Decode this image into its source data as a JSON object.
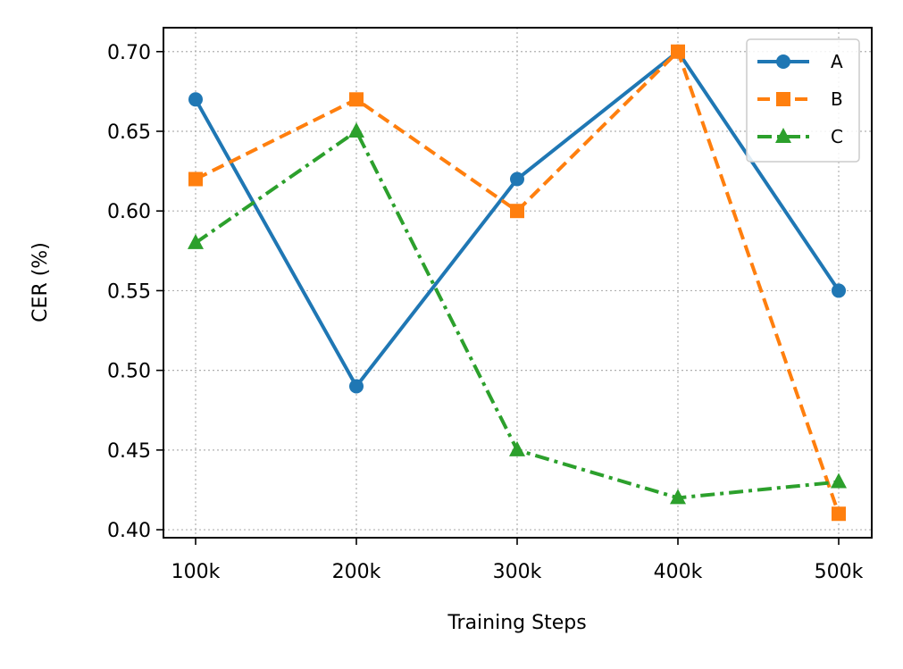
{
  "chart_data": {
    "type": "line",
    "title": "",
    "xlabel": "Training Steps",
    "ylabel": "CER (%)",
    "categories": [
      "100k",
      "200k",
      "300k",
      "400k",
      "500k"
    ],
    "ylim": [
      0.395,
      0.715
    ],
    "yticks": [
      0.4,
      0.45,
      0.5,
      0.55,
      0.6,
      0.65,
      0.7
    ],
    "ytick_labels": [
      "0.40",
      "0.45",
      "0.50",
      "0.55",
      "0.60",
      "0.65",
      "0.70"
    ],
    "grid": true,
    "legend_position": "top-right",
    "series": [
      {
        "name": "A",
        "values": [
          0.67,
          0.49,
          0.62,
          0.7,
          0.55
        ],
        "color": "#1f77b4",
        "dash": "solid",
        "marker": "circle"
      },
      {
        "name": "B",
        "values": [
          0.62,
          0.67,
          0.6,
          0.7,
          0.41
        ],
        "color": "#ff7f0e",
        "dash": "dashed",
        "marker": "square"
      },
      {
        "name": "C",
        "values": [
          0.58,
          0.65,
          0.45,
          0.42,
          0.43
        ],
        "color": "#2ca02c",
        "dash": "dashdot",
        "marker": "triangle"
      }
    ]
  }
}
